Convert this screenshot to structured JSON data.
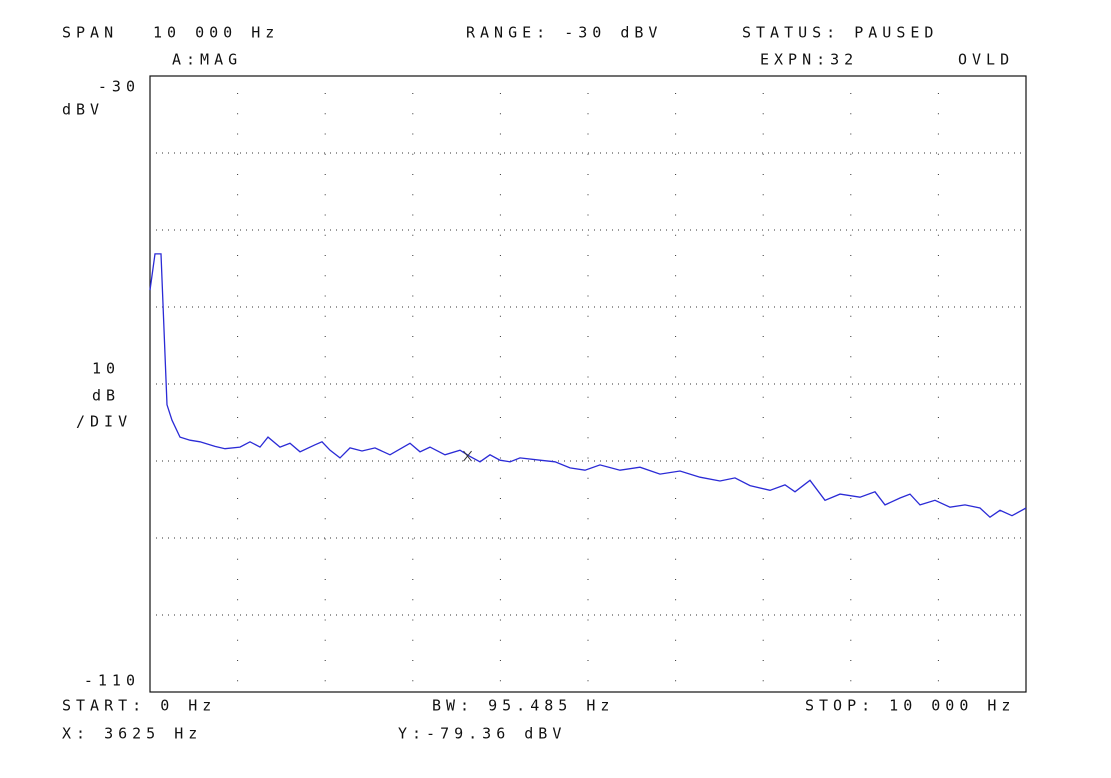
{
  "chart_data": {
    "type": "line",
    "status_bar": {
      "span_label": "SPAN",
      "span": "10 000 Hz",
      "range": "RANGE: -30 dBV",
      "status": "STATUS: PAUSED",
      "trace": "A:MAG",
      "expansion": "EXPN:32",
      "overload": "OVLD"
    },
    "y_unit": "dBV",
    "y_scale": [
      "10",
      "dB",
      "/DIV"
    ],
    "footer": {
      "start": "START: 0 Hz",
      "bandwidth": "BW: 95.485 Hz",
      "stop": "STOP: 10 000 Hz",
      "marker_x": "X: 3625 Hz",
      "marker_y": "Y:-79.36 dBV"
    },
    "xlim": [
      0,
      10000
    ],
    "ylim": [
      -110,
      -30
    ],
    "yticks": [
      -110,
      -30
    ],
    "xgrid": [
      1000,
      2000,
      3000,
      4000,
      5000,
      6000,
      7000,
      8000,
      9000
    ],
    "ygrid": [
      -100,
      -90,
      -80,
      -70,
      -60,
      -50,
      -40
    ],
    "color": "#2b2bd6",
    "x": [
      0,
      57,
      126,
      194,
      251,
      342,
      457,
      571,
      742,
      856,
      1027,
      1142,
      1256,
      1347,
      1484,
      1598,
      1712,
      1884,
      1963,
      2055,
      2169,
      2283,
      2420,
      2568,
      2740,
      2968,
      3082,
      3196,
      3368,
      3539,
      3653,
      3767,
      3881,
      3995,
      4110,
      4224,
      4452,
      4623,
      4795,
      4966,
      5137,
      5365,
      5594,
      5822,
      6050,
      6279,
      6507,
      6678,
      6849,
      7078,
      7249,
      7363,
      7534,
      7705,
      7877,
      8105,
      8276,
      8390,
      8562,
      8676,
      8790,
      8961,
      9132,
      9304,
      9475,
      9589,
      9703,
      9840,
      10000
    ],
    "values": [
      -57.8,
      -53.1,
      -53.1,
      -72.7,
      -74.7,
      -76.9,
      -77.3,
      -77.5,
      -78.1,
      -78.4,
      -78.2,
      -77.5,
      -78.2,
      -76.9,
      -78.2,
      -77.7,
      -78.8,
      -77.9,
      -77.5,
      -78.6,
      -79.6,
      -78.3,
      -78.7,
      -78.3,
      -79.2,
      -77.7,
      -78.8,
      -78.2,
      -79.2,
      -78.6,
      -79.4,
      -80.1,
      -79.2,
      -79.9,
      -80.1,
      -79.6,
      -79.9,
      -80.1,
      -80.9,
      -81.2,
      -80.5,
      -81.2,
      -80.8,
      -81.7,
      -81.3,
      -82.1,
      -82.6,
      -82.2,
      -83.2,
      -83.8,
      -83.1,
      -84.0,
      -82.5,
      -85.1,
      -84.3,
      -84.7,
      -84.0,
      -85.7,
      -84.8,
      -84.3,
      -85.7,
      -85.1,
      -86.0,
      -85.7,
      -86.1,
      -87.3,
      -86.4,
      -87.1,
      -86.1
    ],
    "marker": {
      "x": 3625,
      "y": -79.36
    }
  }
}
